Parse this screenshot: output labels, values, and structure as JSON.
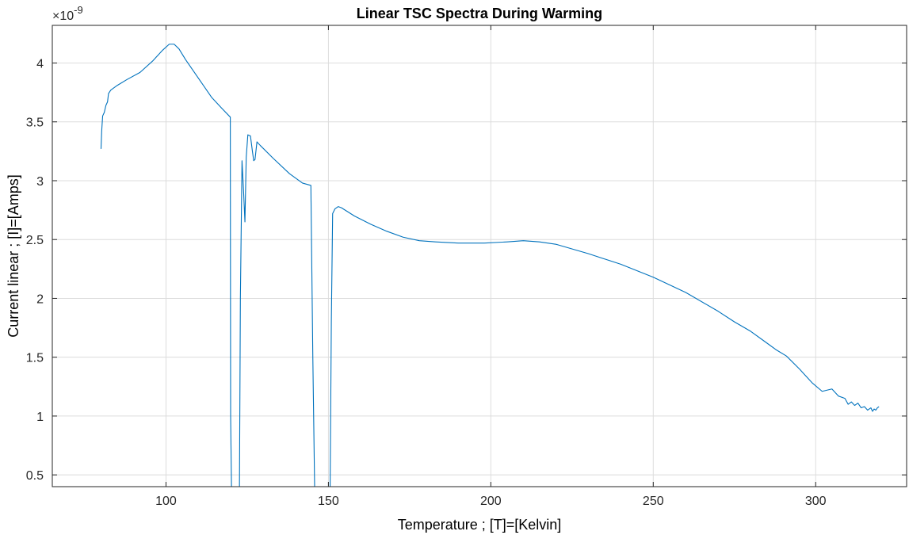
{
  "chart_data": {
    "type": "line",
    "title": "Linear TSC Spectra During Warming",
    "xlabel": "Temperature ; [T]=[Kelvin]",
    "ylabel": "Current linear ; [I]=[Amps]",
    "y_exponent_label": "×10",
    "y_exponent_power": "-9",
    "xlim": [
      65,
      328
    ],
    "ylim": [
      0.4,
      4.32
    ],
    "xticks": [
      100,
      150,
      200,
      250,
      300
    ],
    "xtick_labels": [
      "100",
      "150",
      "200",
      "250",
      "300"
    ],
    "yticks": [
      0.5,
      1,
      1.5,
      2,
      2.5,
      3,
      3.5,
      4
    ],
    "ytick_labels": [
      "0.5",
      "1",
      "1.5",
      "2",
      "2.5",
      "3",
      "3.5",
      "4"
    ],
    "grid": true,
    "colors": {
      "line": "#0072BD",
      "grid": "#dcdcdc",
      "axes": "#262626"
    },
    "series": [
      {
        "x": [
          80.0,
          80.2,
          80.5,
          81,
          81.5,
          82,
          82.3,
          83,
          85,
          88,
          92,
          96,
          99,
          101,
          102.5,
          104,
          106,
          110,
          114,
          117,
          119.8,
          119.9,
          120.2,
          122.6,
          122.9,
          123.4,
          123.9,
          124.3,
          124.7,
          125.2,
          126.0,
          126.6,
          127.0,
          127.4,
          128.0,
          129,
          133,
          138,
          142,
          144.6,
          145.2,
          145.8,
          150.5,
          150.9,
          151.3,
          152,
          153,
          154,
          158,
          163,
          168,
          173,
          178,
          183,
          190,
          198,
          205,
          210,
          215,
          220,
          230,
          240,
          250,
          260,
          270,
          275,
          280,
          285,
          288,
          291,
          295,
          299,
          302,
          305,
          307,
          309,
          310,
          311,
          312,
          313,
          314,
          315,
          316,
          317,
          317.5,
          318,
          318.5,
          319,
          319.5
        ],
        "values": [
          3.27,
          3.42,
          3.55,
          3.58,
          3.64,
          3.67,
          3.74,
          3.77,
          3.81,
          3.86,
          3.92,
          4.02,
          4.11,
          4.16,
          4.16,
          4.12,
          4.03,
          3.87,
          3.71,
          3.62,
          3.54,
          1.0,
          0.3,
          0.3,
          2.0,
          3.17,
          2.9,
          2.65,
          3.2,
          3.39,
          3.38,
          3.25,
          3.17,
          3.18,
          3.33,
          3.3,
          3.19,
          3.06,
          2.98,
          2.96,
          1.5,
          0.3,
          0.3,
          1.8,
          2.72,
          2.76,
          2.78,
          2.77,
          2.7,
          2.63,
          2.57,
          2.52,
          2.49,
          2.48,
          2.47,
          2.47,
          2.48,
          2.49,
          2.48,
          2.46,
          2.38,
          2.29,
          2.18,
          2.05,
          1.89,
          1.8,
          1.72,
          1.62,
          1.56,
          1.51,
          1.4,
          1.28,
          1.21,
          1.23,
          1.17,
          1.15,
          1.1,
          1.12,
          1.09,
          1.11,
          1.07,
          1.08,
          1.05,
          1.07,
          1.04,
          1.06,
          1.05,
          1.07,
          1.08
        ]
      }
    ]
  }
}
